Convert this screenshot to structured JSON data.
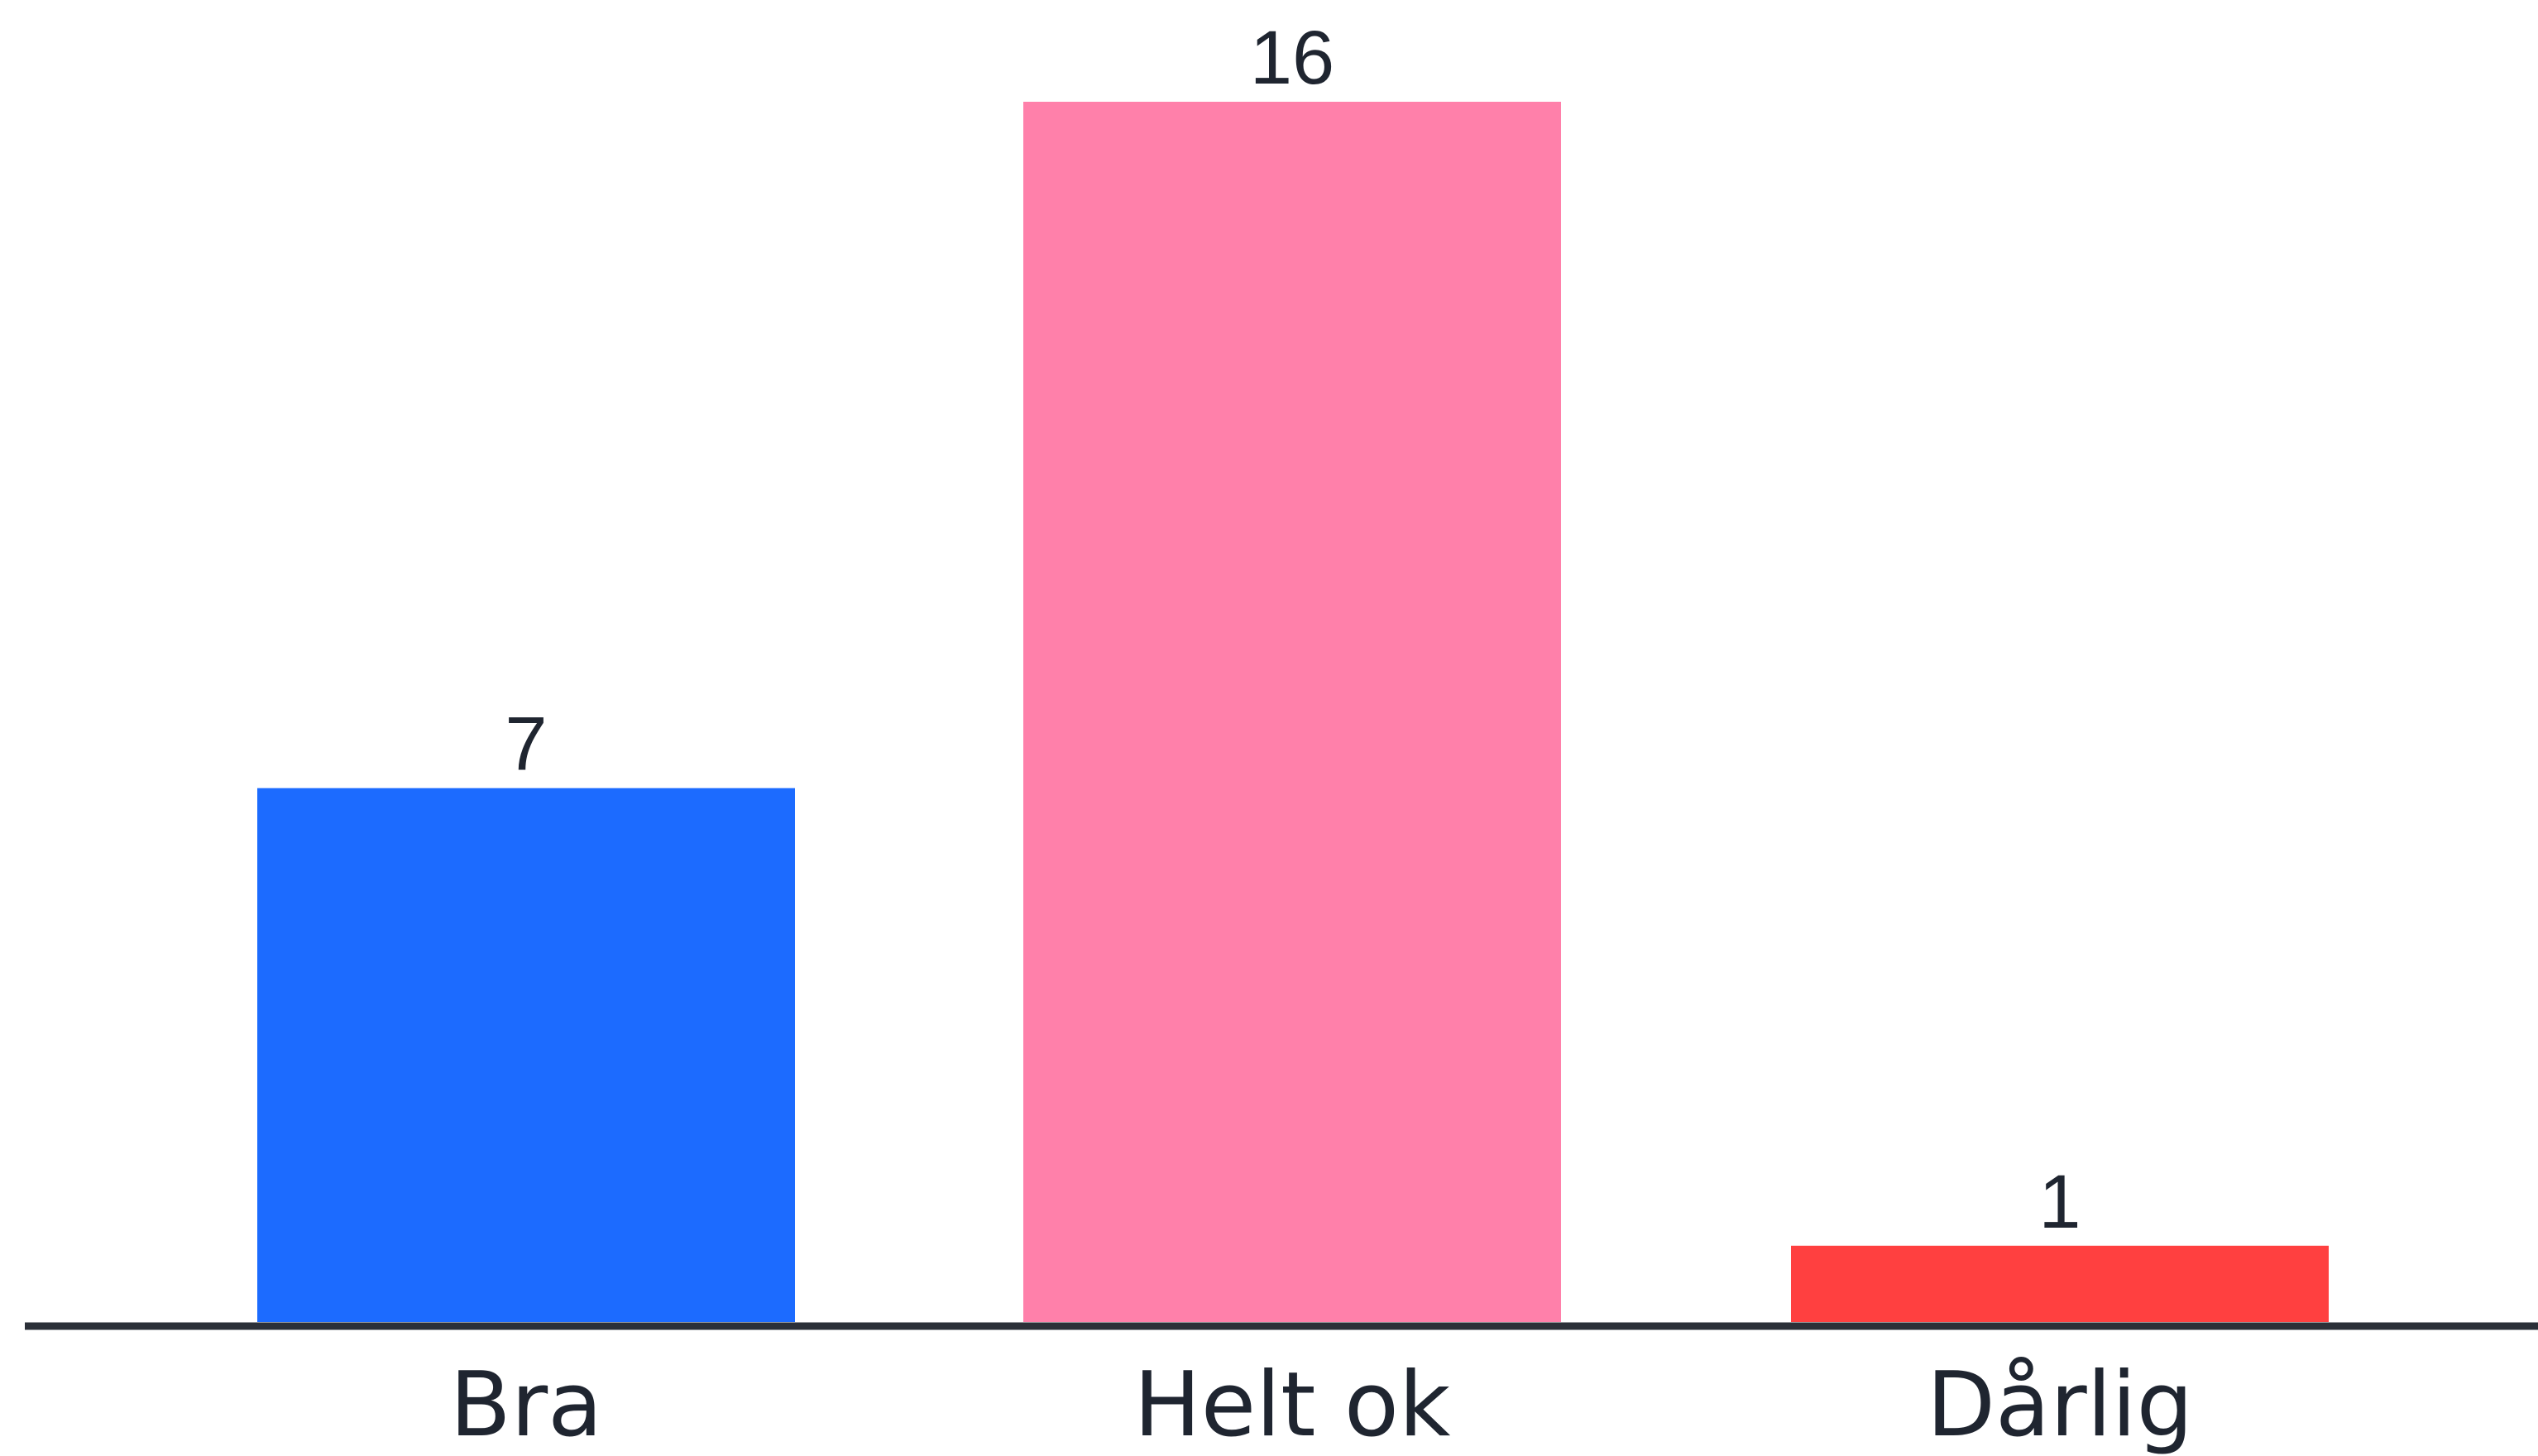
{
  "chart_data": {
    "type": "bar",
    "categories": [
      "Bra",
      "Helt ok",
      "Dårlig"
    ],
    "values": [
      7,
      16,
      1
    ],
    "colors": [
      "#1c6bff",
      "#ff80aa",
      "#ff4040"
    ],
    "axis_color": "#2b3038",
    "label_color": "#1f2530",
    "ylim": [
      0,
      16
    ],
    "grid": false,
    "legend": "none",
    "show_value_labels": true
  }
}
